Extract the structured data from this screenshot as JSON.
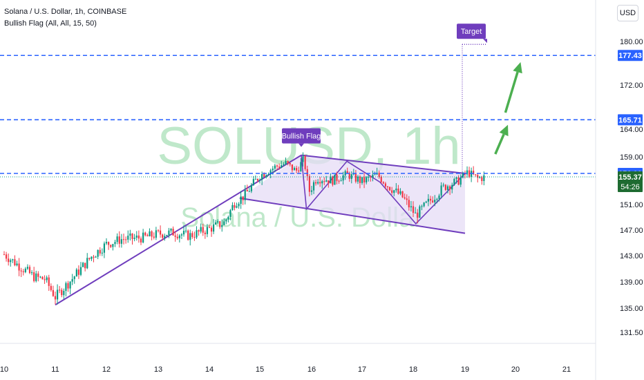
{
  "legend": {
    "symbol_line": "Solana / U.S. Dollar, 1h, COINBASE",
    "indicator_line": "Bullish Flag (All, All, 15, 50)"
  },
  "currency_button": "USD",
  "watermark": {
    "symbol": "SOLUSD, 1h",
    "name": "Solana / U.S. Dollar"
  },
  "colors": {
    "up": "#089981",
    "down": "#f23645",
    "pattern": "#6f3dbd",
    "pattern_fill": "#e6dcf5",
    "level_line": "#2962ff",
    "arrow": "#4caf50",
    "watermark": "#b9e6c5",
    "live_badge": "#1e6b31"
  },
  "chart_data": {
    "type": "candlestick",
    "symbol": "SOLUSD",
    "timeframe": "1h",
    "x_ticks": [
      "10",
      "11",
      "12",
      "13",
      "14",
      "15",
      "16",
      "17",
      "18",
      "19",
      "20",
      "21"
    ],
    "y_ticks": [
      131.5,
      135.0,
      139.0,
      143.0,
      147.0,
      151.0,
      155.0,
      159.0,
      164.0,
      172.0,
      180.0
    ],
    "y_tick_labels": [
      "131.50",
      "135.00",
      "139.00",
      "143.00",
      "147.00",
      "151.00",
      "155.00",
      "159.00",
      "164.00",
      "172.00",
      "180.00"
    ],
    "price_levels": [
      {
        "value": 177.43,
        "label": "177.43"
      },
      {
        "value": 165.71,
        "label": "165.71"
      },
      {
        "value": 156.0,
        "label": "156.00"
      }
    ],
    "current_price": {
      "value": 155.37,
      "label": "155.37",
      "countdown": "54:26"
    },
    "annotations": {
      "pattern_label": "Bullish Flag",
      "target_label": "Target"
    },
    "pattern": {
      "pole": [
        {
          "day": 11.0,
          "price": 135.5
        },
        {
          "day": 15.8,
          "price": 159.3
        }
      ],
      "flag_upper": [
        {
          "day": 15.8,
          "price": 159.3
        },
        {
          "day": 19.0,
          "price": 156.0
        }
      ],
      "flag_lower": [
        {
          "day": 14.6,
          "price": 152.0
        },
        {
          "day": 19.0,
          "price": 146.5
        }
      ],
      "zigzag": [
        {
          "day": 15.8,
          "price": 159.3
        },
        {
          "day": 15.9,
          "price": 150.3
        },
        {
          "day": 16.7,
          "price": 158.2
        },
        {
          "day": 17.35,
          "price": 154.5
        },
        {
          "day": 18.05,
          "price": 148.0
        },
        {
          "day": 19.0,
          "price": 156.0
        }
      ]
    },
    "projection_arrows": [
      {
        "from": {
          "day": 19.6,
          "price": 159.5
        },
        "to": {
          "day": 19.85,
          "price": 164.8
        }
      },
      {
        "from": {
          "day": 19.8,
          "price": 167.0
        },
        "to": {
          "day": 20.1,
          "price": 176.2
        }
      }
    ],
    "ohlc_path": [
      [
        10.0,
        143.2
      ],
      [
        10.3,
        141.4
      ],
      [
        10.6,
        139.7
      ],
      [
        10.8,
        139.4
      ],
      [
        11.0,
        136.7
      ],
      [
        11.3,
        139.2
      ],
      [
        11.7,
        142.8
      ],
      [
        12.0,
        144.8
      ],
      [
        12.3,
        145.6
      ],
      [
        12.7,
        145.8
      ],
      [
        13.0,
        146.4
      ],
      [
        13.3,
        146.6
      ],
      [
        13.6,
        146.1
      ],
      [
        14.0,
        147.2
      ],
      [
        14.3,
        148.2
      ],
      [
        14.5,
        151.3
      ],
      [
        14.7,
        152.4
      ],
      [
        15.0,
        155.6
      ],
      [
        15.3,
        157.2
      ],
      [
        15.5,
        157.8
      ],
      [
        15.7,
        156.4
      ],
      [
        15.85,
        158.6
      ],
      [
        15.95,
        153.0
      ],
      [
        16.1,
        155.2
      ],
      [
        16.4,
        154.8
      ],
      [
        16.7,
        155.8
      ],
      [
        17.0,
        154.6
      ],
      [
        17.3,
        155.7
      ],
      [
        17.5,
        154.0
      ],
      [
        17.8,
        152.1
      ],
      [
        18.05,
        149.3
      ],
      [
        18.3,
        151.4
      ],
      [
        18.6,
        153.8
      ],
      [
        18.85,
        154.6
      ],
      [
        19.05,
        156.2
      ],
      [
        19.25,
        155.1
      ],
      [
        19.4,
        155.37
      ]
    ]
  }
}
